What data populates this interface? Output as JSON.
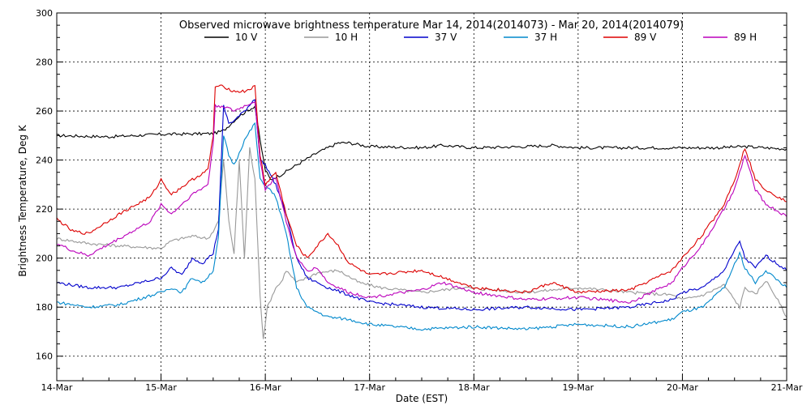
{
  "chart_data": {
    "type": "line",
    "title": "Observed microwave brightness temperature Mar 14, 2014(2014073) - Mar 20, 2014(2014079)",
    "xlabel": "Date (EST)",
    "ylabel": "Brightness Temperature, Deg K",
    "x_unit": "days since 14-Mar 00:00",
    "xlim": [
      0,
      7
    ],
    "ylim": [
      150,
      300
    ],
    "x_ticks": [
      {
        "value": 0,
        "label": "14-Mar"
      },
      {
        "value": 1,
        "label": "15-Mar"
      },
      {
        "value": 2,
        "label": "16-Mar"
      },
      {
        "value": 3,
        "label": "17-Mar"
      },
      {
        "value": 4,
        "label": "18-Mar"
      },
      {
        "value": 5,
        "label": "19-Mar"
      },
      {
        "value": 6,
        "label": "20-Mar"
      },
      {
        "value": 7,
        "label": "21-Mar"
      }
    ],
    "y_ticks": [
      160,
      180,
      200,
      220,
      240,
      260,
      280,
      300
    ],
    "grid": true,
    "legend_position": "top",
    "series": [
      {
        "name": "10 V",
        "color": "#000000",
        "points": [
          [
            0,
            250
          ],
          [
            0.5,
            249.5
          ],
          [
            1,
            250.5
          ],
          [
            1.5,
            250.8
          ],
          [
            1.6,
            252
          ],
          [
            1.75,
            258
          ],
          [
            1.9,
            262
          ],
          [
            1.95,
            248
          ],
          [
            2.0,
            236
          ],
          [
            2.05,
            232
          ],
          [
            2.15,
            234
          ],
          [
            2.3,
            238
          ],
          [
            2.5,
            243
          ],
          [
            2.7,
            247
          ],
          [
            2.8,
            247
          ],
          [
            3.0,
            245.5
          ],
          [
            3.5,
            245
          ],
          [
            3.7,
            246
          ],
          [
            4.0,
            245
          ],
          [
            4.5,
            245.5
          ],
          [
            4.75,
            246
          ],
          [
            5.0,
            245
          ],
          [
            5.5,
            245
          ],
          [
            6.0,
            245
          ],
          [
            6.3,
            245
          ],
          [
            6.6,
            245.5
          ],
          [
            7,
            244.5
          ]
        ]
      },
      {
        "name": "10 H",
        "color": "#999999",
        "points": [
          [
            0,
            208
          ],
          [
            0.3,
            206
          ],
          [
            0.6,
            205
          ],
          [
            1.0,
            204
          ],
          [
            1.1,
            207
          ],
          [
            1.3,
            209
          ],
          [
            1.45,
            208
          ],
          [
            1.5,
            211
          ],
          [
            1.55,
            215
          ],
          [
            1.6,
            240
          ],
          [
            1.65,
            215
          ],
          [
            1.7,
            202
          ],
          [
            1.75,
            240
          ],
          [
            1.8,
            200
          ],
          [
            1.85,
            245
          ],
          [
            1.9,
            232
          ],
          [
            1.95,
            185
          ],
          [
            1.98,
            167
          ],
          [
            2.02,
            180
          ],
          [
            2.1,
            188
          ],
          [
            2.15,
            190
          ],
          [
            2.2,
            195
          ],
          [
            2.3,
            190
          ],
          [
            2.5,
            194
          ],
          [
            2.7,
            195
          ],
          [
            2.9,
            190
          ],
          [
            3.1,
            188
          ],
          [
            3.5,
            186
          ],
          [
            3.9,
            188
          ],
          [
            4.5,
            186
          ],
          [
            5.0,
            188
          ],
          [
            5.5,
            186
          ],
          [
            5.9,
            185
          ],
          [
            6.0,
            183
          ],
          [
            6.2,
            185
          ],
          [
            6.4,
            189
          ],
          [
            6.55,
            180
          ],
          [
            6.6,
            188
          ],
          [
            6.7,
            185
          ],
          [
            6.8,
            191
          ],
          [
            6.9,
            184
          ],
          [
            7,
            176
          ]
        ]
      },
      {
        "name": "37 V",
        "color": "#0000cc",
        "points": [
          [
            0,
            190
          ],
          [
            0.3,
            188
          ],
          [
            0.6,
            188
          ],
          [
            1.0,
            192
          ],
          [
            1.1,
            196
          ],
          [
            1.2,
            193
          ],
          [
            1.3,
            200
          ],
          [
            1.4,
            198
          ],
          [
            1.5,
            202
          ],
          [
            1.55,
            212
          ],
          [
            1.6,
            262
          ],
          [
            1.65,
            255
          ],
          [
            1.7,
            256
          ],
          [
            1.8,
            260
          ],
          [
            1.9,
            265
          ],
          [
            1.95,
            240
          ],
          [
            2.0,
            238
          ],
          [
            2.1,
            230
          ],
          [
            2.2,
            218
          ],
          [
            2.3,
            200
          ],
          [
            2.4,
            192
          ],
          [
            2.6,
            188
          ],
          [
            2.8,
            185
          ],
          [
            3.0,
            182
          ],
          [
            3.5,
            180
          ],
          [
            4.0,
            179
          ],
          [
            4.5,
            180
          ],
          [
            5.0,
            179
          ],
          [
            5.5,
            180
          ],
          [
            5.9,
            183
          ],
          [
            6.0,
            186
          ],
          [
            6.2,
            188
          ],
          [
            6.4,
            195
          ],
          [
            6.55,
            207
          ],
          [
            6.6,
            200
          ],
          [
            6.7,
            196
          ],
          [
            6.8,
            201
          ],
          [
            7,
            195
          ]
        ]
      },
      {
        "name": "37 H",
        "color": "#0088cc",
        "points": [
          [
            0,
            182
          ],
          [
            0.3,
            180
          ],
          [
            0.6,
            181
          ],
          [
            1.0,
            186
          ],
          [
            1.1,
            188
          ],
          [
            1.2,
            186
          ],
          [
            1.3,
            192
          ],
          [
            1.4,
            190
          ],
          [
            1.5,
            195
          ],
          [
            1.55,
            208
          ],
          [
            1.6,
            250
          ],
          [
            1.65,
            242
          ],
          [
            1.7,
            238
          ],
          [
            1.8,
            248
          ],
          [
            1.9,
            255
          ],
          [
            1.95,
            232
          ],
          [
            2.0,
            230
          ],
          [
            2.1,
            225
          ],
          [
            2.2,
            210
          ],
          [
            2.3,
            188
          ],
          [
            2.4,
            180
          ],
          [
            2.6,
            176
          ],
          [
            2.8,
            175
          ],
          [
            3.0,
            173
          ],
          [
            3.5,
            171
          ],
          [
            4.0,
            172
          ],
          [
            4.5,
            171
          ],
          [
            5.0,
            173
          ],
          [
            5.5,
            172
          ],
          [
            5.9,
            175
          ],
          [
            6.0,
            178
          ],
          [
            6.2,
            180
          ],
          [
            6.4,
            188
          ],
          [
            6.55,
            202
          ],
          [
            6.6,
            196
          ],
          [
            6.7,
            190
          ],
          [
            6.8,
            195
          ],
          [
            7,
            188
          ]
        ]
      },
      {
        "name": "89 V",
        "color": "#dd0000",
        "points": [
          [
            0,
            216
          ],
          [
            0.15,
            211
          ],
          [
            0.3,
            210
          ],
          [
            0.6,
            218
          ],
          [
            0.9,
            225
          ],
          [
            1.0,
            232
          ],
          [
            1.1,
            226
          ],
          [
            1.3,
            232
          ],
          [
            1.45,
            236
          ],
          [
            1.5,
            250
          ],
          [
            1.52,
            270
          ],
          [
            1.6,
            270
          ],
          [
            1.7,
            268
          ],
          [
            1.8,
            268
          ],
          [
            1.9,
            270
          ],
          [
            1.95,
            242
          ],
          [
            2.0,
            230
          ],
          [
            2.1,
            235
          ],
          [
            2.2,
            218
          ],
          [
            2.3,
            205
          ],
          [
            2.4,
            200
          ],
          [
            2.5,
            205
          ],
          [
            2.6,
            210
          ],
          [
            2.7,
            205
          ],
          [
            2.8,
            198
          ],
          [
            3.0,
            193
          ],
          [
            3.5,
            195
          ],
          [
            4.0,
            188
          ],
          [
            4.5,
            186
          ],
          [
            4.75,
            190
          ],
          [
            5.0,
            186
          ],
          [
            5.5,
            187
          ],
          [
            5.9,
            195
          ],
          [
            6.0,
            200
          ],
          [
            6.2,
            210
          ],
          [
            6.4,
            222
          ],
          [
            6.5,
            232
          ],
          [
            6.6,
            245
          ],
          [
            6.7,
            232
          ],
          [
            6.8,
            228
          ],
          [
            7,
            223
          ]
        ]
      },
      {
        "name": "89 H",
        "color": "#bb00bb",
        "points": [
          [
            0,
            206
          ],
          [
            0.15,
            203
          ],
          [
            0.3,
            201
          ],
          [
            0.6,
            208
          ],
          [
            0.9,
            215
          ],
          [
            1.0,
            222
          ],
          [
            1.1,
            218
          ],
          [
            1.3,
            226
          ],
          [
            1.45,
            230
          ],
          [
            1.5,
            247
          ],
          [
            1.52,
            262
          ],
          [
            1.6,
            262
          ],
          [
            1.7,
            260
          ],
          [
            1.8,
            262
          ],
          [
            1.9,
            264
          ],
          [
            1.95,
            240
          ],
          [
            2.0,
            228
          ],
          [
            2.1,
            233
          ],
          [
            2.2,
            215
          ],
          [
            2.3,
            200
          ],
          [
            2.4,
            195
          ],
          [
            2.5,
            196
          ],
          [
            2.6,
            190
          ],
          [
            2.8,
            186
          ],
          [
            3.0,
            184
          ],
          [
            3.5,
            187
          ],
          [
            3.7,
            190
          ],
          [
            4.0,
            186
          ],
          [
            4.5,
            183
          ],
          [
            5.0,
            184
          ],
          [
            5.5,
            182
          ],
          [
            5.9,
            190
          ],
          [
            6.0,
            196
          ],
          [
            6.2,
            206
          ],
          [
            6.4,
            220
          ],
          [
            6.5,
            228
          ],
          [
            6.6,
            242
          ],
          [
            6.7,
            228
          ],
          [
            6.8,
            222
          ],
          [
            7,
            217
          ]
        ]
      }
    ]
  }
}
